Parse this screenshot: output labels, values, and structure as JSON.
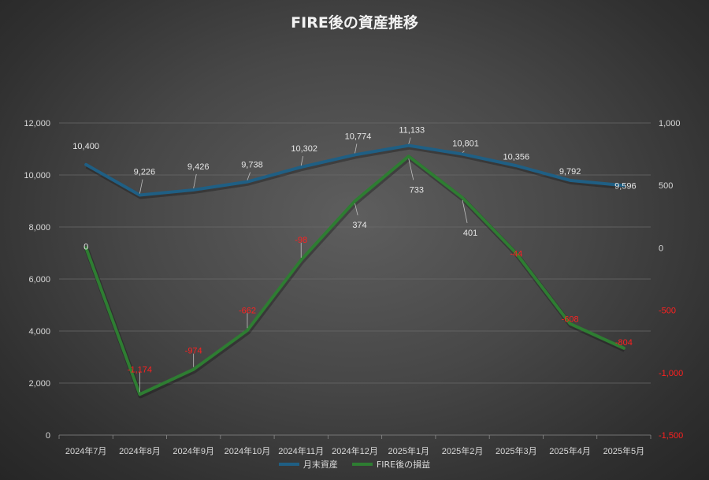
{
  "chart_data": {
    "type": "line",
    "title": "FIRE後の資産推移",
    "categories": [
      "2024年7月",
      "2024年8月",
      "2024年9月",
      "2024年10月",
      "2024年11月",
      "2024年12月",
      "2025年1月",
      "2025年2月",
      "2025年3月",
      "2025年4月",
      "2025年5月"
    ],
    "series": [
      {
        "name": "月末資産",
        "axis": "left",
        "color": "#1f5f84",
        "values": [
          10400,
          9226,
          9426,
          9738,
          10302,
          10774,
          11133,
          10801,
          10356,
          9792,
          9596
        ],
        "labels": [
          "10,400",
          "9,226",
          "9,426",
          "9,738",
          "10,302",
          "10,774",
          "11,133",
          "10,801",
          "10,356",
          "9,792",
          "9,596"
        ],
        "label_color": "#e6e6e6"
      },
      {
        "name": "FIRE後の損益",
        "axis": "right",
        "color": "#2e7d32",
        "values": [
          0,
          -1174,
          -974,
          -662,
          -98,
          374,
          733,
          401,
          -44,
          -608,
          -804
        ],
        "labels": [
          "0",
          "-1,174",
          "-974",
          "-662",
          "-98",
          "374",
          "733",
          "401",
          "-44",
          "-608",
          "-804"
        ],
        "label_color_positive": "#e6e6e6",
        "label_color_negative": "#ff2020"
      }
    ],
    "y_left": {
      "lim": [
        0,
        12000
      ],
      "ticks": [
        "0",
        "2,000",
        "4,000",
        "6,000",
        "8,000",
        "10,000",
        "12,000"
      ]
    },
    "y_right": {
      "lim": [
        -1500,
        1000
      ],
      "ticks": [
        "-1,500",
        "-1,000",
        "-500",
        "0",
        "500",
        "1,000"
      ],
      "negative_color": "#ff2020"
    },
    "grid": true,
    "legend_position": "bottom"
  }
}
